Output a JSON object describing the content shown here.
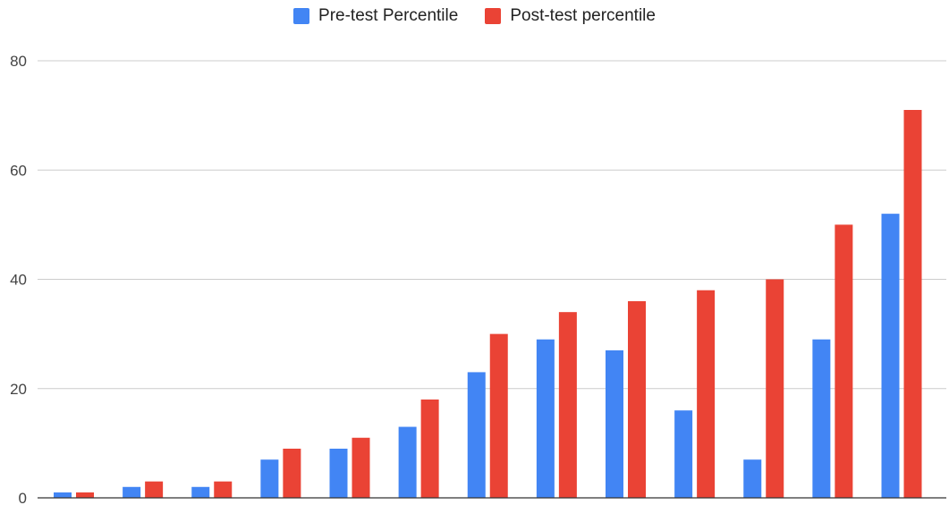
{
  "chart_data": {
    "type": "bar",
    "title": "",
    "xlabel": "",
    "ylabel": "",
    "ylim": [
      0,
      80
    ],
    "yticks": [
      0,
      20,
      40,
      60,
      80
    ],
    "grid": true,
    "legend_position": "top-center",
    "categories": [
      "",
      "",
      "",
      "",
      "",
      "",
      "",
      "",
      "",
      "",
      "",
      "",
      ""
    ],
    "series": [
      {
        "name": "Pre-test Percentile",
        "color": "#4285F4",
        "values": [
          1,
          2,
          2,
          7,
          9,
          13,
          23,
          29,
          27,
          16,
          7,
          29,
          52
        ]
      },
      {
        "name": "Post-test percentile",
        "color": "#EA4335",
        "values": [
          1,
          3,
          3,
          9,
          11,
          18,
          30,
          34,
          36,
          38,
          40,
          50,
          71
        ]
      }
    ]
  }
}
